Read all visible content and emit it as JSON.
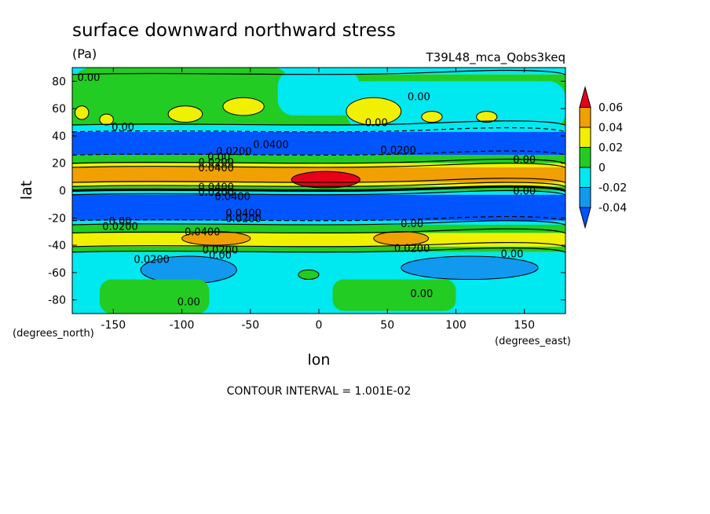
{
  "chart_data": {
    "type": "heatmap",
    "title": "surface downward northward stress",
    "units": "(Pa)",
    "run_label": "T39L48_mca_Qobs3keq",
    "xlabel": "lon",
    "ylabel": "lat",
    "x_units": "(degrees_east)",
    "y_units": "(degrees_north)",
    "xlim": [
      -180,
      180
    ],
    "ylim": [
      -90,
      90
    ],
    "x_ticks": [
      -150,
      -100,
      -50,
      0,
      50,
      100,
      150
    ],
    "x_tick_labels": [
      "-150",
      "-100",
      "-50",
      "0",
      "50",
      "100",
      "150"
    ],
    "y_ticks": [
      80,
      60,
      40,
      20,
      0,
      -20,
      -40,
      -60,
      -80
    ],
    "y_tick_labels": [
      "80",
      "60",
      "40",
      "20",
      "0",
      "-20",
      "-40",
      "-60",
      "-80"
    ],
    "footer": "CONTOUR INTERVAL = 1.001E-02",
    "colorbar": {
      "levels": [
        0.06,
        0.04,
        0.02,
        0,
        -0.02,
        -0.04
      ],
      "labels": [
        "0.06",
        "0.04",
        "0.02",
        "0",
        "-0.02",
        "-0.04"
      ],
      "colors": [
        "#e8001a",
        "#f0a000",
        "#f0f000",
        "#22cc22",
        "#00e8f0",
        "#1199f0",
        "#0055ff"
      ]
    },
    "zonal_bands": [
      {
        "lat_range": [
          85,
          90
        ],
        "value_class": "-0.02 to 0",
        "color": "#00e8f0"
      },
      {
        "lat_range": [
          48,
          85
        ],
        "value_class": "0 to 0.02",
        "color": "#22cc22"
      },
      {
        "lat_range": [
          43,
          48
        ],
        "value_class": "-0.02 to 0",
        "color": "#00e8f0"
      },
      {
        "lat_range": [
          26,
          43
        ],
        "value_class": "< -0.04",
        "color": "#0055ff"
      },
      {
        "lat_range": [
          20,
          26
        ],
        "value_class": "0 to 0.02",
        "color": "#22cc22"
      },
      {
        "lat_range": [
          17,
          20
        ],
        "value_class": "0.02 to 0.04",
        "color": "#f0f000"
      },
      {
        "lat_range": [
          6,
          17
        ],
        "value_class": "0.04 to 0.06",
        "color": "#f0a000"
      },
      {
        "lat_range": [
          3,
          6
        ],
        "value_class": "0.02 to 0.04",
        "color": "#f0f000"
      },
      {
        "lat_range": [
          0,
          3
        ],
        "value_class": "0 to 0.02",
        "color": "#22cc22"
      },
      {
        "lat_range": [
          -3,
          0
        ],
        "value_class": "-0.02 to 0",
        "color": "#00e8f0"
      },
      {
        "lat_range": [
          -22,
          -3
        ],
        "value_class": "< -0.04",
        "color": "#0055ff"
      },
      {
        "lat_range": [
          -25,
          -22
        ],
        "value_class": "-0.02 to 0",
        "color": "#00e8f0"
      },
      {
        "lat_range": [
          -31,
          -25
        ],
        "value_class": "0 to 0.02",
        "color": "#22cc22"
      },
      {
        "lat_range": [
          -41,
          -31
        ],
        "value_class": "0.02 to 0.04",
        "color": "#f0f000"
      },
      {
        "lat_range": [
          -45,
          -41
        ],
        "value_class": "0 to 0.02",
        "color": "#22cc22"
      },
      {
        "lat_range": [
          -90,
          -45
        ],
        "value_class": "-0.02 to 0",
        "color": "#00e8f0"
      }
    ],
    "regions": [
      {
        "lon": [
          -180,
          -20
        ],
        "lat": [
          50,
          90
        ],
        "shape": "patch",
        "value_class": "0 to 0.02",
        "color": "#22cc22"
      },
      {
        "lon": [
          -30,
          30
        ],
        "lat": [
          55,
          88
        ],
        "shape": "patch",
        "value_class": "-0.02 to 0",
        "color": "#00e8f0"
      },
      {
        "lon": [
          20,
          180
        ],
        "lat": [
          45,
          80
        ],
        "shape": "patch",
        "value_class": "-0.02 to 0",
        "color": "#00e8f0"
      },
      {
        "lon": [
          -178,
          -168
        ],
        "lat": [
          52,
          62
        ],
        "shape": "blob",
        "value_class": "0.02 to 0.04",
        "color": "#f0f000"
      },
      {
        "lon": [
          -160,
          -150
        ],
        "lat": [
          48,
          56
        ],
        "shape": "blob",
        "value_class": "0.02 to 0.04",
        "color": "#f0f000"
      },
      {
        "lon": [
          -110,
          -85
        ],
        "lat": [
          50,
          62
        ],
        "shape": "blob",
        "value_class": "0.02 to 0.04",
        "color": "#f0f000"
      },
      {
        "lon": [
          -70,
          -40
        ],
        "lat": [
          55,
          68
        ],
        "shape": "blob",
        "value_class": "0.02 to 0.04",
        "color": "#f0f000"
      },
      {
        "lon": [
          20,
          60
        ],
        "lat": [
          48,
          68
        ],
        "shape": "blob",
        "value_class": "0.02 to 0.04",
        "color": "#f0f000"
      },
      {
        "lon": [
          75,
          90
        ],
        "lat": [
          50,
          58
        ],
        "shape": "blob",
        "value_class": "0.02 to 0.04",
        "color": "#f0f000"
      },
      {
        "lon": [
          115,
          130
        ],
        "lat": [
          50,
          58
        ],
        "shape": "blob",
        "value_class": "0.02 to 0.04",
        "color": "#f0f000"
      },
      {
        "lon": [
          -20,
          30
        ],
        "lat": [
          2,
          14
        ],
        "shape": "blob",
        "value_class": "> 0.06",
        "color": "#e8001a"
      },
      {
        "lon": [
          -100,
          -50
        ],
        "lat": [
          -40,
          -30
        ],
        "shape": "blob",
        "value_class": "0.04 to 0.06",
        "color": "#f0a000"
      },
      {
        "lon": [
          40,
          80
        ],
        "lat": [
          -40,
          -30
        ],
        "shape": "blob",
        "value_class": "0.04 to 0.06",
        "color": "#f0a000"
      },
      {
        "lon": [
          -130,
          -60
        ],
        "lat": [
          -68,
          -48
        ],
        "shape": "blob",
        "value_class": "-0.04 to -0.02",
        "color": "#1199f0"
      },
      {
        "lon": [
          60,
          160
        ],
        "lat": [
          -65,
          -48
        ],
        "shape": "blob",
        "value_class": "-0.04 to -0.02",
        "color": "#1199f0"
      },
      {
        "lon": [
          -160,
          -80
        ],
        "lat": [
          -90,
          -65
        ],
        "shape": "patch",
        "value_class": "0 to 0.02",
        "color": "#22cc22"
      },
      {
        "lon": [
          10,
          100
        ],
        "lat": [
          -88,
          -65
        ],
        "shape": "patch",
        "value_class": "0 to 0.02",
        "color": "#22cc22"
      },
      {
        "lon": [
          -15,
          0
        ],
        "lat": [
          -65,
          -58
        ],
        "shape": "blob",
        "value_class": "0 to 0.02",
        "color": "#22cc22"
      }
    ],
    "contour_labels": [
      {
        "text": "0.00",
        "lon": -168,
        "lat": 83
      },
      {
        "text": "0.00",
        "lon": 73,
        "lat": 69
      },
      {
        "text": "0.00",
        "lon": 42,
        "lat": 50
      },
      {
        "text": "0.00",
        "lon": -143,
        "lat": 47
      },
      {
        "text": "0.0400",
        "lon": -35,
        "lat": 34
      },
      {
        "text": "0.0200",
        "lon": -62,
        "lat": 29
      },
      {
        "text": "0.0200",
        "lon": 58,
        "lat": 30
      },
      {
        "text": "0.00",
        "lon": -73,
        "lat": 25
      },
      {
        "text": "0.0200",
        "lon": -75,
        "lat": 21
      },
      {
        "text": "0.0400",
        "lon": -75,
        "lat": 17
      },
      {
        "text": "0.00",
        "lon": 150,
        "lat": 23
      },
      {
        "text": "0.0400",
        "lon": -75,
        "lat": 3
      },
      {
        "text": "0.0200",
        "lon": -75,
        "lat": -1
      },
      {
        "text": "0.0400",
        "lon": -63,
        "lat": -4
      },
      {
        "text": "0.00",
        "lon": 150,
        "lat": 0
      },
      {
        "text": "0.0400",
        "lon": -55,
        "lat": -16
      },
      {
        "text": "0.0200",
        "lon": -55,
        "lat": -20
      },
      {
        "text": "0.00",
        "lon": -145,
        "lat": -22
      },
      {
        "text": "0.0200",
        "lon": -145,
        "lat": -26
      },
      {
        "text": "0.00",
        "lon": 68,
        "lat": -24
      },
      {
        "text": "0.0400",
        "lon": -85,
        "lat": -30
      },
      {
        "text": "0.0200",
        "lon": -72,
        "lat": -43
      },
      {
        "text": "0.00",
        "lon": -72,
        "lat": -47
      },
      {
        "text": "0.0200",
        "lon": 68,
        "lat": -42
      },
      {
        "text": "0.00",
        "lon": 141,
        "lat": -46
      },
      {
        "text": "0.0200",
        "lon": -122,
        "lat": -50
      },
      {
        "text": "0.00",
        "lon": 75,
        "lat": -75
      },
      {
        "text": "0.00",
        "lon": -95,
        "lat": -81
      }
    ]
  }
}
